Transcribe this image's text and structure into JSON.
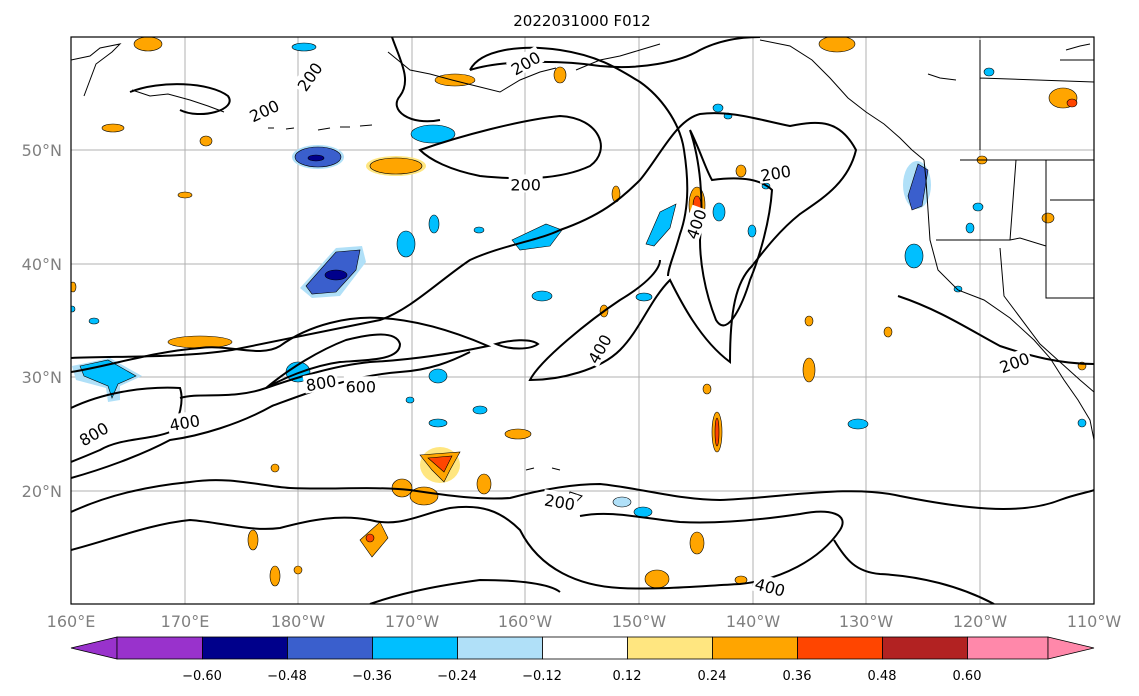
{
  "title": "2022031000 F012",
  "map": {
    "lat_labels": [
      "50°N",
      "40°N",
      "30°N",
      "20°N"
    ],
    "lon_labels": [
      "160°E",
      "170°E",
      "180°W",
      "170°W",
      "160°W",
      "150°W",
      "140°W",
      "130°W",
      "120°W",
      "110°W"
    ],
    "extent": {
      "lon_min": 160,
      "lon_max": 250,
      "lat_min": 10,
      "lat_max": 60
    }
  },
  "contour_labels": [
    {
      "text": "200",
      "lon": 177,
      "lat": 53.5,
      "angle": -25
    },
    {
      "text": "200",
      "lon": 181,
      "lat": 56.5,
      "angle": -55
    },
    {
      "text": "200",
      "lon": 200,
      "lat": 57.7,
      "angle": -30
    },
    {
      "text": "200",
      "lon": 200,
      "lat": 47,
      "angle": 0
    },
    {
      "text": "200",
      "lon": 222,
      "lat": 48,
      "angle": -10
    },
    {
      "text": "400",
      "lon": 215,
      "lat": 43.5,
      "angle": -70
    },
    {
      "text": "400",
      "lon": 206.5,
      "lat": 32.5,
      "angle": -60
    },
    {
      "text": "800",
      "lon": 182,
      "lat": 29.5,
      "angle": -10
    },
    {
      "text": "600",
      "lon": 185.5,
      "lat": 29.2,
      "angle": 0
    },
    {
      "text": "800",
      "lon": 162,
      "lat": 25,
      "angle": -30
    },
    {
      "text": "400",
      "lon": 170,
      "lat": 26,
      "angle": -10
    },
    {
      "text": "200",
      "lon": 243,
      "lat": 31.3,
      "angle": -20
    },
    {
      "text": "200",
      "lon": 203,
      "lat": 19,
      "angle": 10
    },
    {
      "text": "400",
      "lon": 221.5,
      "lat": 11.5,
      "angle": 15
    }
  ],
  "colorbar": {
    "ticks": [
      "−0.60",
      "−0.48",
      "−0.36",
      "−0.24",
      "−0.12",
      "0.12",
      "0.24",
      "0.36",
      "0.48",
      "0.60"
    ],
    "colors": {
      "lt_m060": "#9932cc",
      "m060_m048": "#00008b",
      "m048_m036": "#3a5fcd",
      "m036_m024": "#00bfff",
      "m024_m012": "#b0e0f8",
      "m012_p012": "#ffffff",
      "p012_p024": "#ffe680",
      "p024_p036": "#ffa500",
      "p036_p048": "#ff4500",
      "p048_p060": "#b22222",
      "gt_p060": "#ff88aa"
    }
  }
}
